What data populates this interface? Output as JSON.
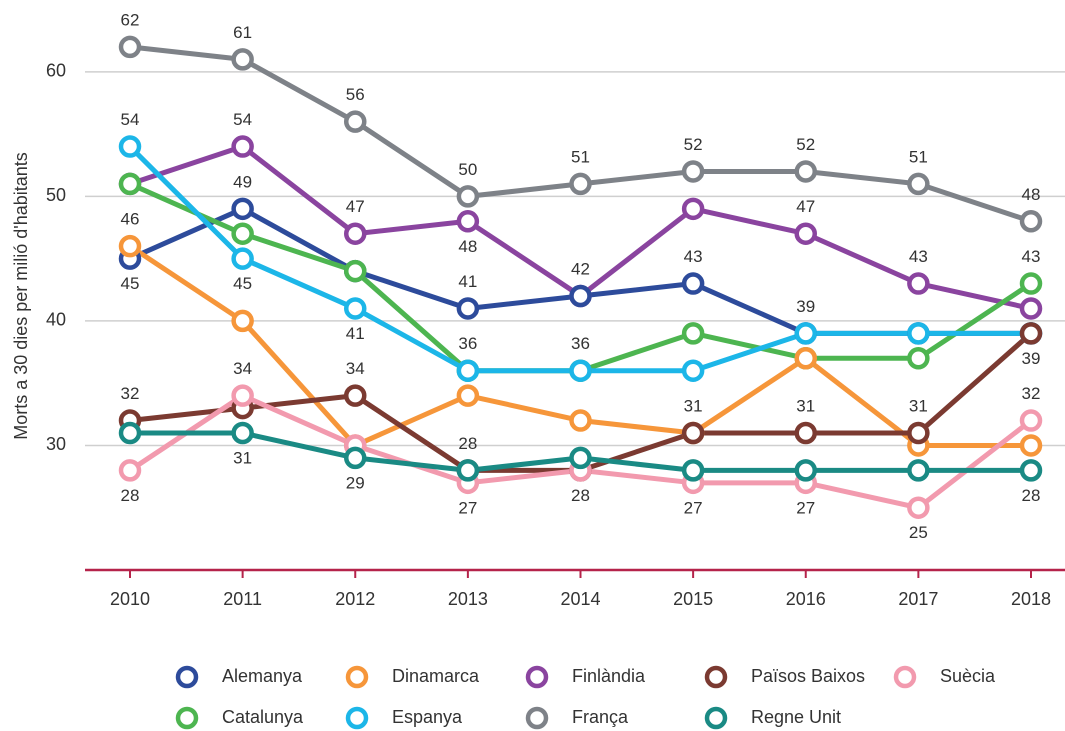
{
  "chart_data": {
    "type": "line",
    "y_label": "Morts a 30 dies per milió d'habitants",
    "x": [
      "2010",
      "2011",
      "2012",
      "2013",
      "2014",
      "2015",
      "2016",
      "2017",
      "2018"
    ],
    "ylim": [
      20,
      64
    ],
    "yticks": [
      30,
      40,
      50,
      60
    ],
    "grid": true,
    "legend": "bottom",
    "series": [
      {
        "name": "Alemanya",
        "color": "#2d4b9b",
        "values": [
          45,
          49,
          44,
          41,
          42,
          43,
          39,
          39,
          39
        ],
        "value_labels": [
          "45",
          "49",
          null,
          "41",
          null,
          "43",
          "39",
          null,
          null
        ]
      },
      {
        "name": "Dinamarca",
        "color": "#f6963a",
        "values": [
          46,
          40,
          30,
          34,
          32,
          31,
          37,
          30,
          30
        ],
        "value_labels": [
          "46",
          null,
          null,
          null,
          null,
          null,
          null,
          null,
          null
        ]
      },
      {
        "name": "Finlàndia",
        "color": "#8a449f",
        "values": [
          51,
          54,
          47,
          48,
          42,
          49,
          47,
          43,
          41
        ],
        "value_labels": [
          null,
          "54",
          "47",
          "48",
          "42",
          null,
          "47",
          "43",
          null
        ]
      },
      {
        "name": "Països Baixos",
        "color": "#7b3a31",
        "values": [
          32,
          33,
          34,
          28,
          28,
          31,
          31,
          31,
          39
        ],
        "value_labels": [
          "32",
          null,
          "34",
          null,
          "28",
          "31",
          "31",
          "31",
          null
        ]
      },
      {
        "name": "Suècia",
        "color": "#f29aae",
        "values": [
          28,
          34,
          30,
          27,
          28,
          27,
          27,
          25,
          32
        ],
        "value_labels": [
          "28",
          "34",
          null,
          "27",
          null,
          "27",
          "27",
          "25",
          "32"
        ]
      },
      {
        "name": "Catalunya",
        "color": "#4db550",
        "values": [
          51,
          47,
          44,
          36,
          36,
          39,
          37,
          37,
          43
        ],
        "value_labels": [
          null,
          null,
          null,
          null,
          null,
          null,
          null,
          null,
          "43"
        ]
      },
      {
        "name": "Espanya",
        "color": "#1cb6e8",
        "values": [
          54,
          45,
          41,
          36,
          36,
          36,
          39,
          39,
          39
        ],
        "value_labels": [
          "54",
          "45",
          "41",
          "36",
          "36",
          null,
          null,
          null,
          "39"
        ]
      },
      {
        "name": "França",
        "color": "#7e8288",
        "values": [
          62,
          61,
          56,
          50,
          51,
          52,
          52,
          51,
          48
        ],
        "value_labels": [
          "62",
          "61",
          "56",
          "50",
          "51",
          "52",
          "52",
          "51",
          "48"
        ]
      },
      {
        "name": "Regne Unit",
        "color": "#1a8a84",
        "values": [
          31,
          31,
          29,
          28,
          29,
          28,
          28,
          28,
          28
        ],
        "value_labels": [
          null,
          "31",
          "29",
          "28",
          null,
          null,
          null,
          null,
          "28"
        ]
      }
    ]
  }
}
